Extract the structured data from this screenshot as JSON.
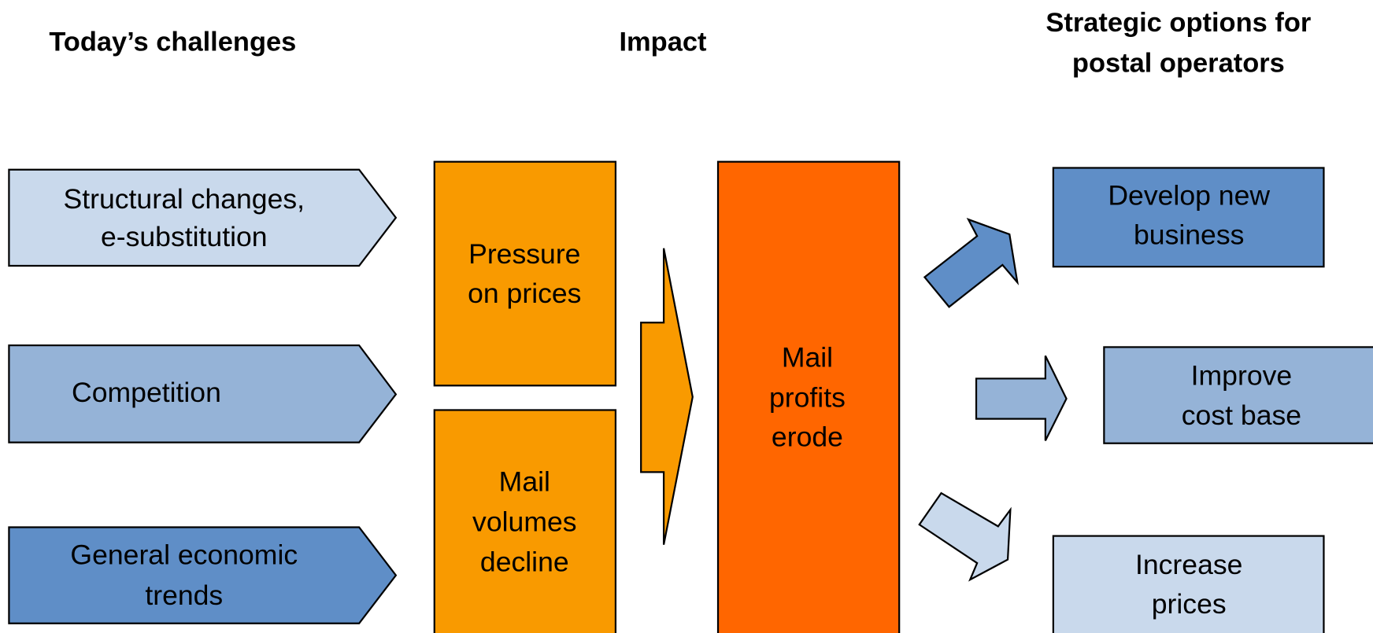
{
  "headers": [
    "Today’s challenges",
    "Impact",
    [
      "Strategic options for",
      "postal operators"
    ]
  ],
  "challenges": [
    [
      "Structural changes,",
      "e-substitution"
    ],
    [
      "Competition"
    ],
    [
      "General economic",
      "trends"
    ]
  ],
  "impacts": [
    [
      "Pressure",
      "on prices"
    ],
    [
      "Mail",
      "volumes",
      "decline"
    ]
  ],
  "result": [
    "Mail",
    "profits",
    "erode"
  ],
  "options": [
    [
      "Develop new",
      "business"
    ],
    [
      "Improve",
      "cost base"
    ],
    [
      "Increase",
      "prices"
    ]
  ]
}
